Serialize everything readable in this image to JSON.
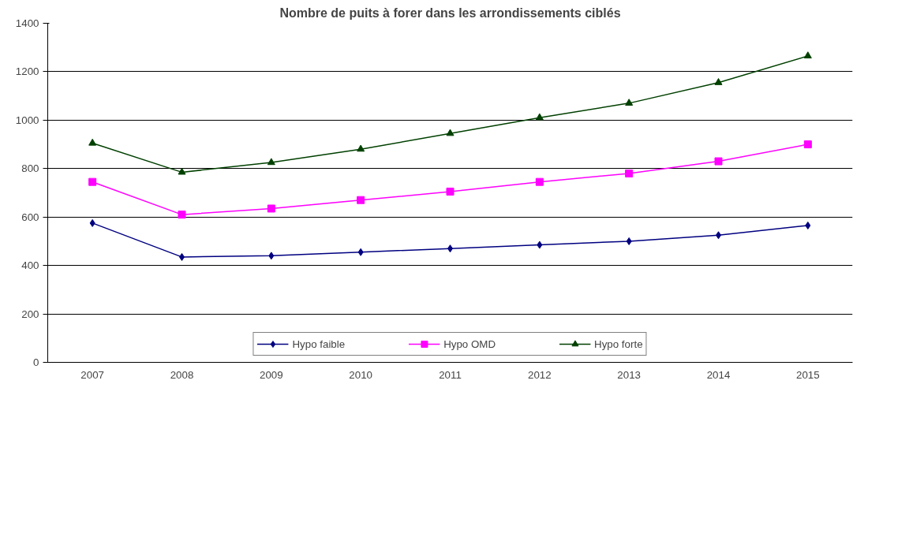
{
  "chart_data": {
    "type": "line",
    "title": "Nombre de puits à forer dans les arrondissements ciblés",
    "categories": [
      "2007",
      "2008",
      "2009",
      "2010",
      "2011",
      "2012",
      "2013",
      "2014",
      "2015"
    ],
    "series": [
      {
        "name": "Hypo faible",
        "color": "#000080",
        "marker": "diamond",
        "values": [
          575,
          435,
          440,
          455,
          470,
          485,
          500,
          525,
          565
        ]
      },
      {
        "name": "Hypo OMD",
        "color": "#ff00ff",
        "marker": "square",
        "values": [
          745,
          610,
          635,
          670,
          705,
          745,
          780,
          830,
          900
        ]
      },
      {
        "name": "Hypo forte",
        "color": "#004000",
        "marker": "triangle",
        "values": [
          905,
          785,
          825,
          880,
          945,
          1010,
          1070,
          1155,
          1265
        ]
      }
    ],
    "ylim": [
      0,
      1400
    ],
    "yticks": [
      0,
      200,
      400,
      600,
      800,
      1000,
      1200,
      1400
    ],
    "grid": "y",
    "legend": "bottom",
    "line_style": "solid"
  }
}
